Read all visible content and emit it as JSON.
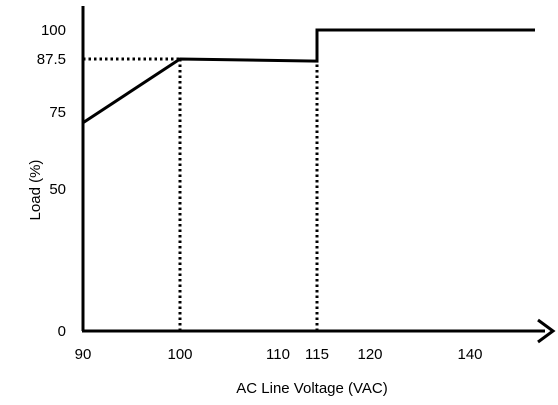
{
  "chart_data": {
    "type": "line",
    "title": "",
    "xlabel": "AC Line Voltage (VAC)",
    "ylabel": "Load (%)",
    "xlim": [
      90,
      150
    ],
    "ylim": [
      0,
      100
    ],
    "grid": false,
    "legend": "none",
    "x_ticks": [
      {
        "value": 90,
        "label": "90",
        "color": "#000000"
      },
      {
        "value": 100,
        "label": "100",
        "color": "#000000"
      },
      {
        "value": 110,
        "label": "110",
        "color": "#000000"
      },
      {
        "value": 115,
        "label": "115",
        "color": "#e00000"
      },
      {
        "value": 120,
        "label": "120",
        "color": "#000000"
      },
      {
        "value": 140,
        "label": "140",
        "color": "#000000"
      }
    ],
    "y_ticks": [
      {
        "value": 0,
        "label": "0"
      },
      {
        "value": 50,
        "label": "50"
      },
      {
        "value": 75,
        "label": "75"
      },
      {
        "value": 87.5,
        "label": "87.5"
      },
      {
        "value": 100,
        "label": "100"
      }
    ],
    "series": [
      {
        "color": "#000000",
        "points": [
          {
            "x": 90,
            "y": 71.5
          },
          {
            "x": 100,
            "y": 87.5
          },
          {
            "x": 115,
            "y": 87
          },
          {
            "x": 115,
            "y": 100
          },
          {
            "x": 150,
            "y": 100
          }
        ]
      }
    ],
    "reference_lines": [
      {
        "orientation": "horizontal",
        "y": 87.5,
        "x_from": 90,
        "x_to": 100,
        "style": "dotted"
      },
      {
        "orientation": "vertical",
        "x": 100,
        "y_from": 0,
        "y_to": 87.5,
        "style": "dotted"
      },
      {
        "orientation": "vertical",
        "x": 115,
        "y_from": 0,
        "y_to": 87,
        "style": "dotted"
      }
    ]
  }
}
